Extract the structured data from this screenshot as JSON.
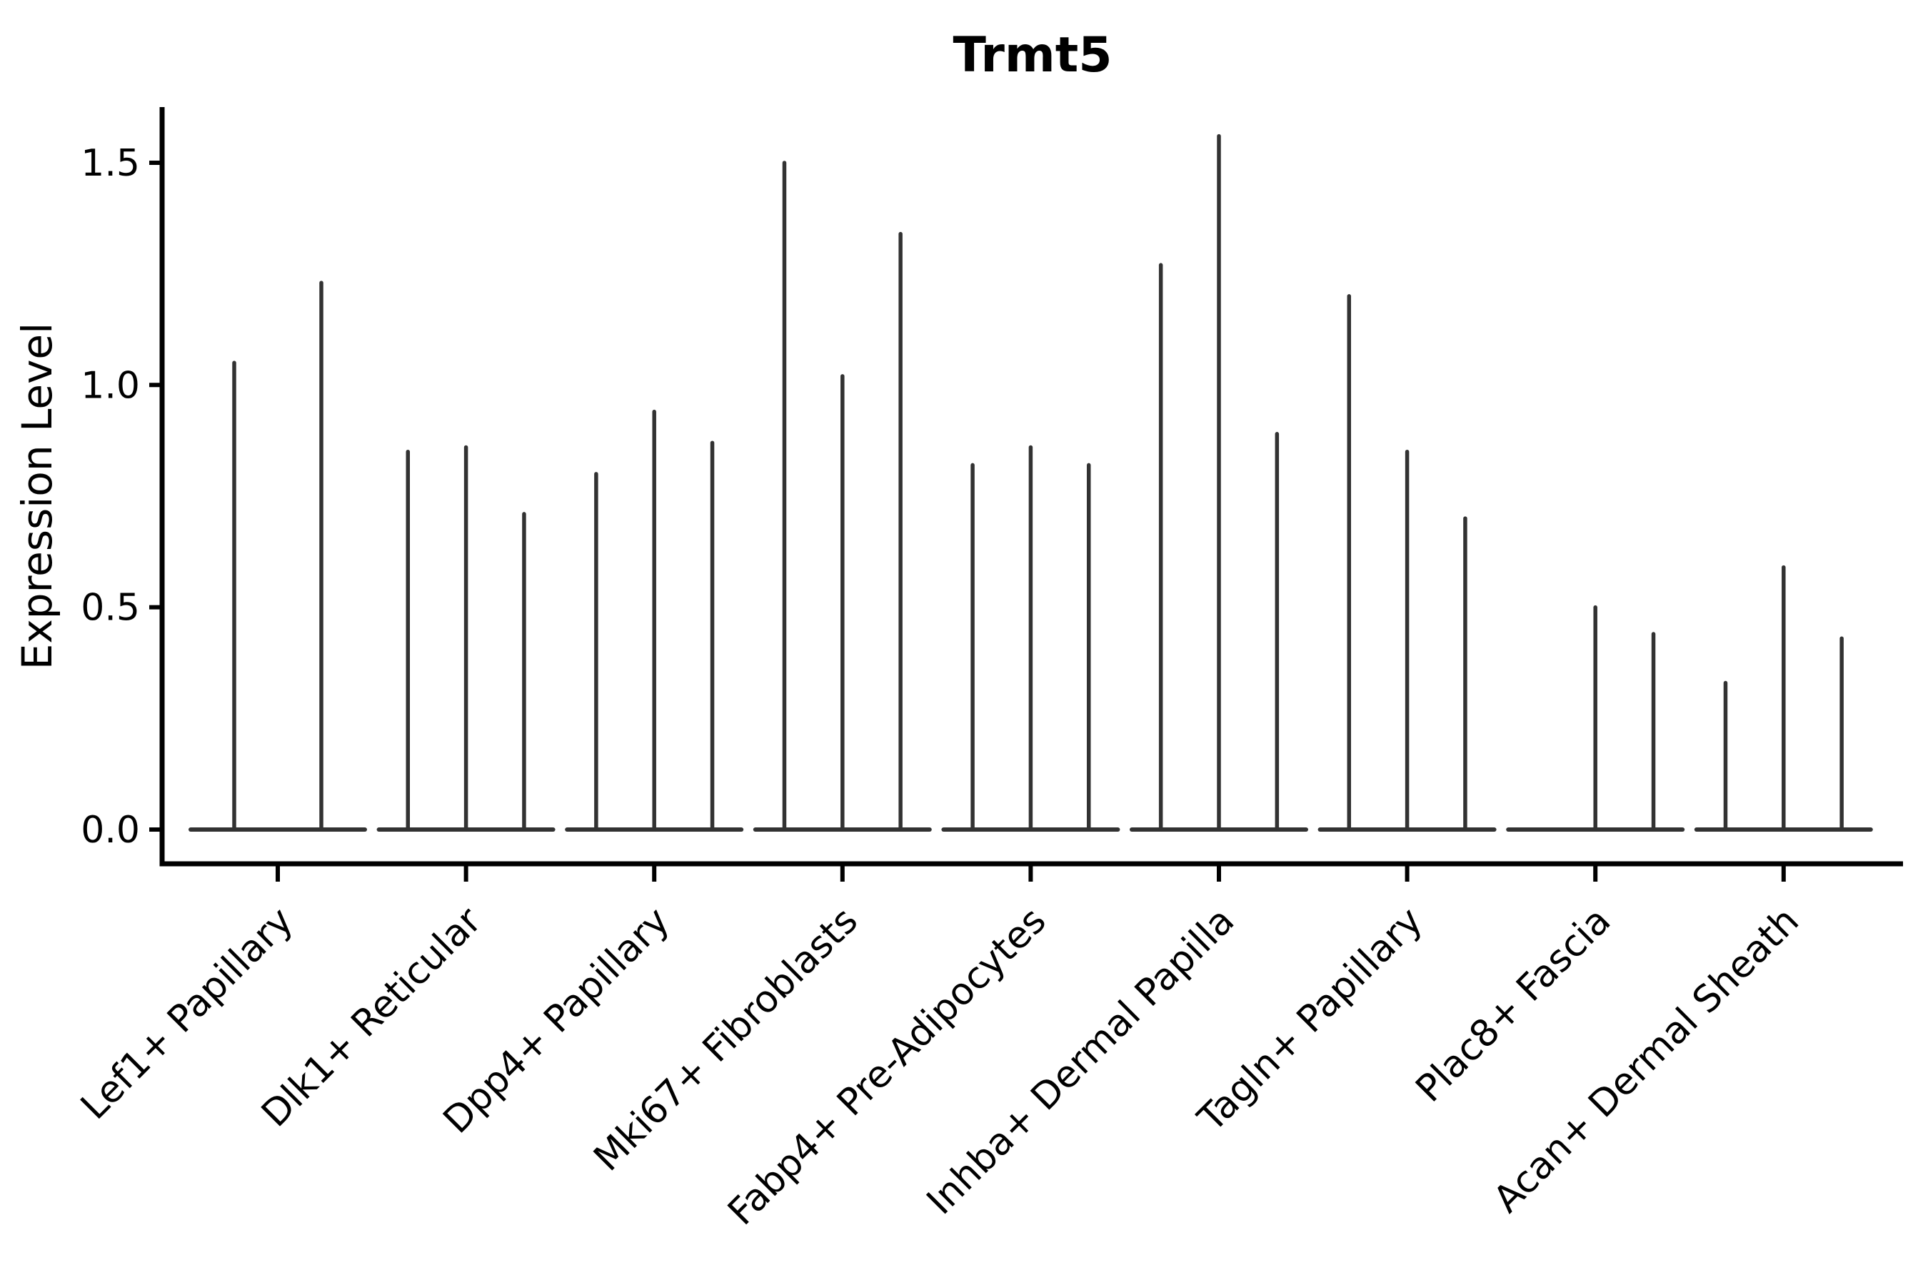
{
  "chart_data": {
    "type": "violin",
    "title": "Trmt5",
    "xlabel": "",
    "ylabel": "Expression Level",
    "ylim": [
      -0.08,
      1.63
    ],
    "yticks": [
      0.0,
      0.5,
      1.0,
      1.5
    ],
    "ytick_labels": [
      "0.0",
      "0.5",
      "1.0",
      "1.5"
    ],
    "grid": false,
    "legend": "none",
    "categories": [
      "Lef1+ Papillary",
      "Dlk1+ Reticular",
      "Dpp4+ Papillary",
      "Mki67+ Fibroblasts",
      "Fabp4+ Pre-Adipocytes",
      "Inhba+ Dermal Papilla",
      "Tagln+ Papillary",
      "Plac8+ Fascia",
      "Acan+ Dermal Sheath"
    ],
    "violin_max_expression": [
      [
        1.05,
        1.23
      ],
      [
        0.85,
        0.86,
        0.71
      ],
      [
        0.8,
        0.94,
        0.87
      ],
      [
        1.5,
        1.02,
        1.34
      ],
      [
        0.82,
        0.86,
        0.82
      ],
      [
        1.27,
        1.56,
        0.89
      ],
      [
        1.2,
        0.85,
        0.7
      ],
      [
        0.0,
        0.5,
        0.44
      ],
      [
        0.33,
        0.59,
        0.43
      ]
    ],
    "violin_color": "#323232",
    "axis_color": "#000000",
    "background_color": "#ffffff"
  }
}
